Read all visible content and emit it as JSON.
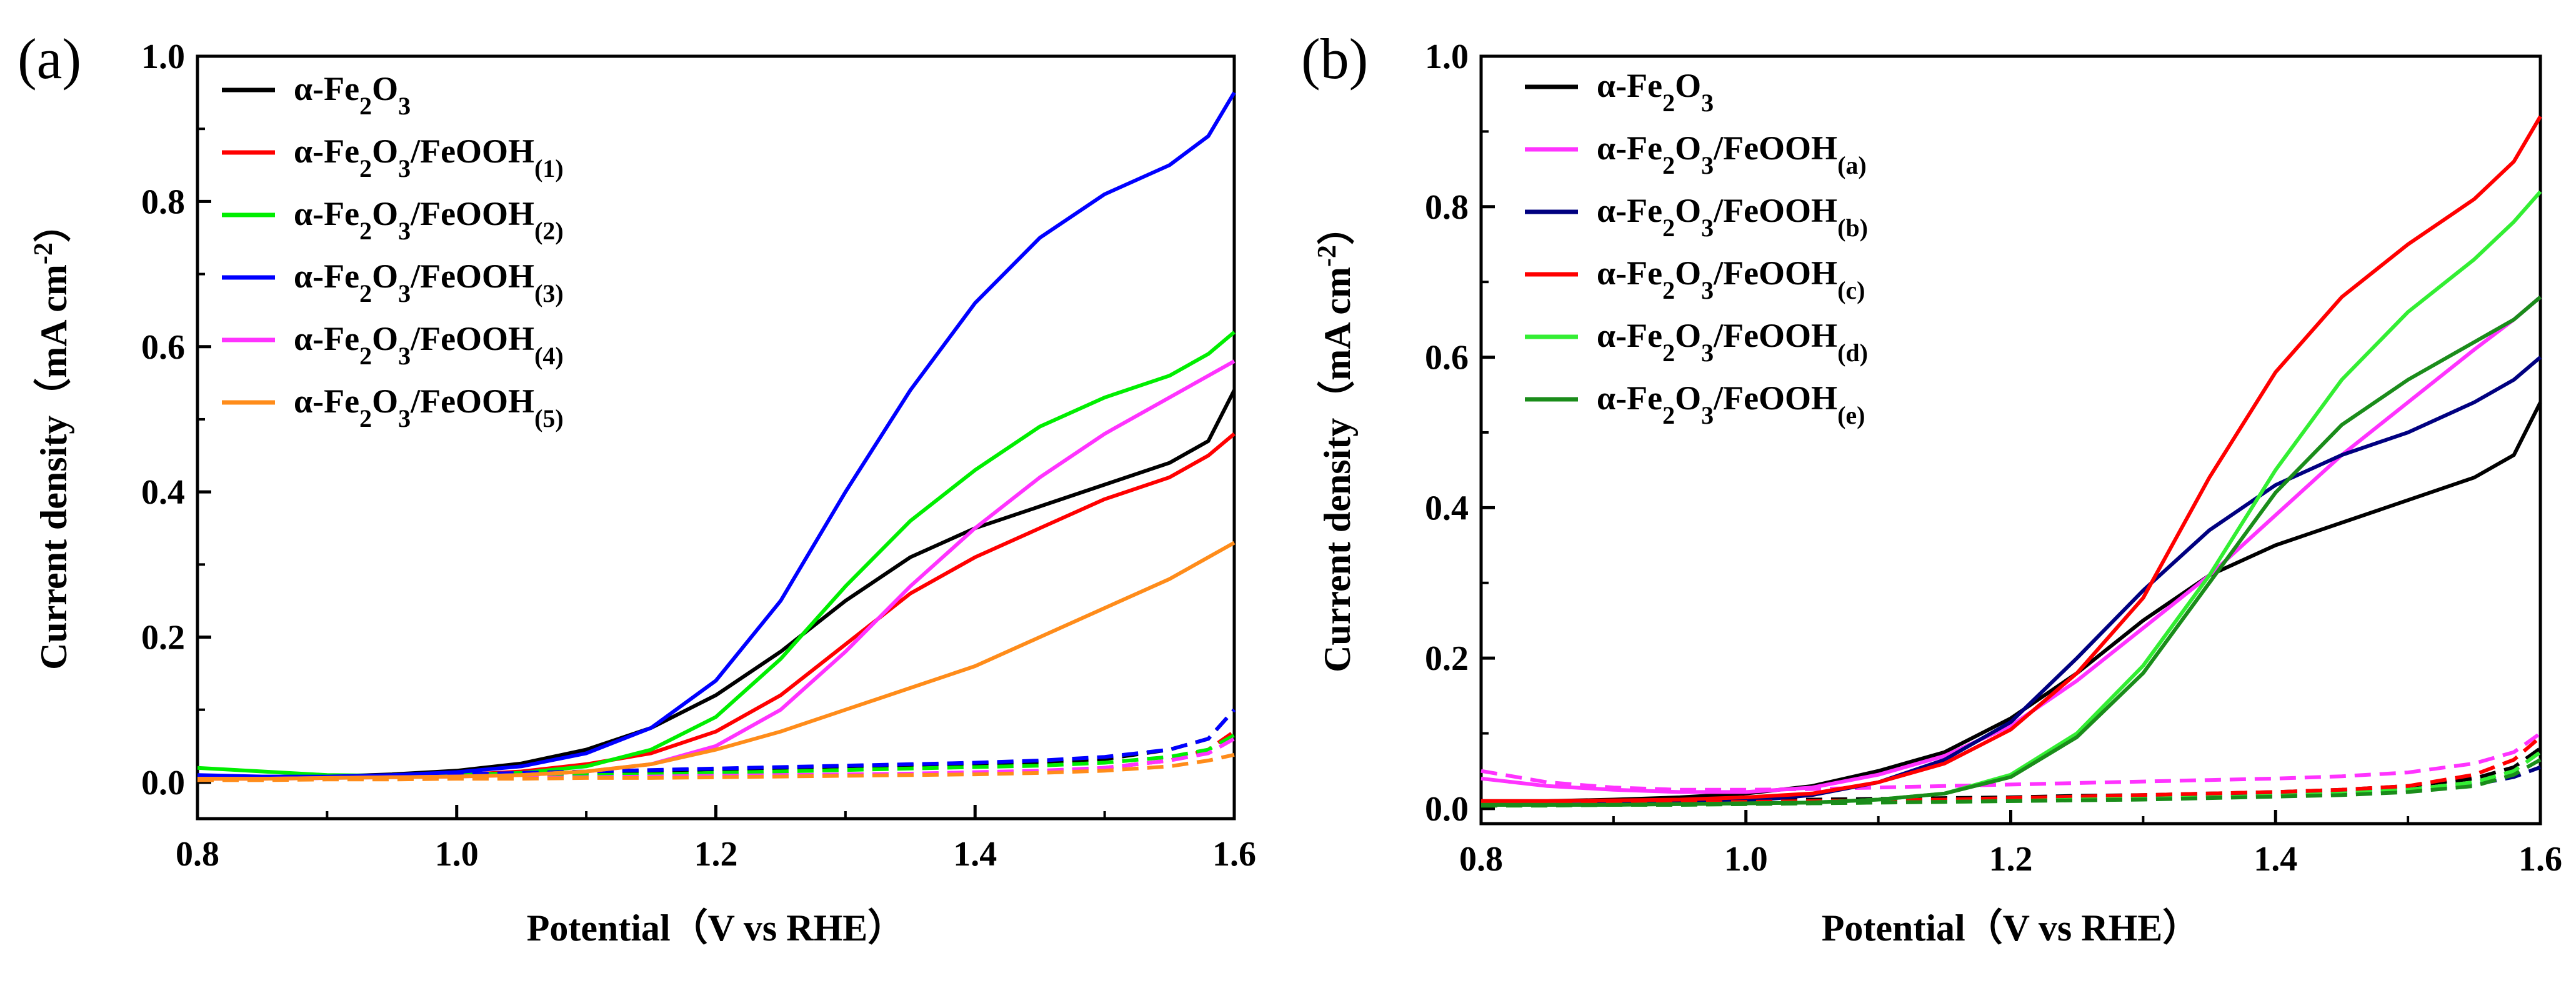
{
  "chart_data": [
    {
      "panel_label": "(a)",
      "type": "line",
      "xlabel": "Potential（V  vs RHE）",
      "ylabel": "Current density（mA cm",
      "ylabel_sup": "-2",
      "ylabel_tail": "）",
      "xlim": [
        0.8,
        1.6
      ],
      "ylim": [
        -0.05,
        1.0
      ],
      "xticks": [
        "0.8",
        "1.0",
        "1.2",
        "1.4",
        "1.6"
      ],
      "yticks": [
        "0.0",
        "0.2",
        "0.4",
        "0.6",
        "0.8",
        "1.0"
      ],
      "grid": false,
      "legend_position": "top-left",
      "x": [
        0.8,
        0.85,
        0.9,
        0.95,
        1.0,
        1.05,
        1.1,
        1.15,
        1.2,
        1.25,
        1.3,
        1.35,
        1.4,
        1.45,
        1.5,
        1.55,
        1.58,
        1.6
      ],
      "series": [
        {
          "name": "α-Fe2O3",
          "label_main": "α-Fe",
          "label_sub1": "2",
          "label_mid": "O",
          "label_sub2": "3",
          "label_tail": "",
          "label_sub3": "",
          "color": "#000000",
          "values": [
            0.005,
            0.006,
            0.008,
            0.011,
            0.016,
            0.026,
            0.045,
            0.075,
            0.12,
            0.18,
            0.25,
            0.31,
            0.35,
            0.38,
            0.41,
            0.44,
            0.47,
            0.54
          ],
          "dark": [
            0.005,
            0.006,
            0.007,
            0.009,
            0.01,
            0.012,
            0.014,
            0.016,
            0.018,
            0.02,
            0.022,
            0.024,
            0.026,
            0.028,
            0.032,
            0.045,
            0.06,
            0.1
          ]
        },
        {
          "name": "α-Fe2O3/FeOOH(1)",
          "label_main": "α-Fe",
          "label_sub1": "2",
          "label_mid": "O",
          "label_sub2": "3",
          "label_tail": "/FeOOH",
          "label_sub3": "(1)",
          "color": "#ff0000",
          "values": [
            0.005,
            0.005,
            0.006,
            0.008,
            0.01,
            0.015,
            0.025,
            0.04,
            0.07,
            0.12,
            0.19,
            0.26,
            0.31,
            0.35,
            0.39,
            0.42,
            0.45,
            0.48
          ],
          "dark": [
            0.004,
            0.004,
            0.005,
            0.005,
            0.006,
            0.006,
            0.007,
            0.007,
            0.008,
            0.009,
            0.01,
            0.011,
            0.013,
            0.015,
            0.02,
            0.03,
            0.045,
            0.07
          ]
        },
        {
          "name": "α-Fe2O3/FeOOH(2)",
          "label_main": "α-Fe",
          "label_sub1": "2",
          "label_mid": "O",
          "label_sub2": "3",
          "label_tail": "/FeOOH",
          "label_sub3": "(2)",
          "color": "#00ee00",
          "values": [
            0.02,
            0.015,
            0.01,
            0.009,
            0.01,
            0.013,
            0.022,
            0.045,
            0.09,
            0.17,
            0.27,
            0.36,
            0.43,
            0.49,
            0.53,
            0.56,
            0.59,
            0.62
          ],
          "dark": [
            0.005,
            0.005,
            0.006,
            0.007,
            0.008,
            0.009,
            0.01,
            0.011,
            0.013,
            0.015,
            0.017,
            0.019,
            0.021,
            0.023,
            0.027,
            0.035,
            0.045,
            0.065
          ]
        },
        {
          "name": "α-Fe2O3/FeOOH(3)",
          "label_main": "α-Fe",
          "label_sub1": "2",
          "label_mid": "O",
          "label_sub2": "3",
          "label_tail": "/FeOOH",
          "label_sub3": "(3)",
          "color": "#0000ff",
          "values": [
            0.01,
            0.008,
            0.008,
            0.01,
            0.014,
            0.022,
            0.04,
            0.075,
            0.14,
            0.25,
            0.4,
            0.54,
            0.66,
            0.75,
            0.81,
            0.85,
            0.89,
            0.95
          ],
          "dark": [
            0.005,
            0.006,
            0.007,
            0.009,
            0.011,
            0.013,
            0.015,
            0.017,
            0.019,
            0.021,
            0.023,
            0.025,
            0.027,
            0.03,
            0.035,
            0.045,
            0.06,
            0.1
          ]
        },
        {
          "name": "α-Fe2O3/FeOOH(4)",
          "label_main": "α-Fe",
          "label_sub1": "2",
          "label_mid": "O",
          "label_sub2": "3",
          "label_tail": "/FeOOH",
          "label_sub3": "(4)",
          "color": "#ff33ff",
          "values": [
            0.005,
            0.005,
            0.006,
            0.007,
            0.008,
            0.01,
            0.015,
            0.025,
            0.05,
            0.1,
            0.18,
            0.27,
            0.35,
            0.42,
            0.48,
            0.53,
            0.56,
            0.58
          ],
          "dark": [
            0.004,
            0.004,
            0.005,
            0.005,
            0.006,
            0.006,
            0.007,
            0.008,
            0.009,
            0.01,
            0.011,
            0.012,
            0.014,
            0.016,
            0.02,
            0.03,
            0.04,
            0.06
          ]
        },
        {
          "name": "α-Fe2O3/FeOOH(5)",
          "label_main": "α-Fe",
          "label_sub1": "2",
          "label_mid": "O",
          "label_sub2": "3",
          "label_tail": "/FeOOH",
          "label_sub3": "(5)",
          "color": "#ff8c1a",
          "values": [
            0.005,
            0.005,
            0.006,
            0.007,
            0.008,
            0.01,
            0.015,
            0.025,
            0.045,
            0.07,
            0.1,
            0.13,
            0.16,
            0.2,
            0.24,
            0.28,
            0.31,
            0.33
          ],
          "dark": [
            0.003,
            0.003,
            0.004,
            0.004,
            0.005,
            0.005,
            0.006,
            0.006,
            0.007,
            0.008,
            0.009,
            0.01,
            0.011,
            0.013,
            0.016,
            0.022,
            0.03,
            0.038
          ]
        }
      ]
    },
    {
      "panel_label": "(b)",
      "type": "line",
      "xlabel": "Potential（V  vs RHE）",
      "ylabel": "Current density（mA cm",
      "ylabel_sup": "-2",
      "ylabel_tail": "）",
      "xlim": [
        0.8,
        1.6
      ],
      "ylim": [
        -0.02,
        1.0
      ],
      "xticks": [
        "0.8",
        "1.0",
        "1.2",
        "1.4",
        "1.6"
      ],
      "yticks": [
        "0.0",
        "0.2",
        "0.4",
        "0.6",
        "0.8",
        "1.0"
      ],
      "grid": false,
      "legend_position": "top-left",
      "x": [
        0.8,
        0.85,
        0.9,
        0.95,
        1.0,
        1.05,
        1.1,
        1.15,
        1.2,
        1.25,
        1.3,
        1.35,
        1.4,
        1.45,
        1.5,
        1.55,
        1.58,
        1.6
      ],
      "series": [
        {
          "name": "α-Fe2O3",
          "label_main": "α-Fe",
          "label_sub1": "2",
          "label_mid": "O",
          "label_sub2": "3",
          "label_tail": "",
          "label_sub3": "",
          "color": "#000000",
          "values": [
            0.01,
            0.01,
            0.012,
            0.015,
            0.02,
            0.03,
            0.05,
            0.075,
            0.12,
            0.18,
            0.25,
            0.31,
            0.35,
            0.38,
            0.41,
            0.44,
            0.47,
            0.54
          ],
          "dark": [
            0.008,
            0.008,
            0.009,
            0.01,
            0.011,
            0.012,
            0.013,
            0.014,
            0.015,
            0.017,
            0.018,
            0.02,
            0.022,
            0.025,
            0.03,
            0.04,
            0.055,
            0.08
          ]
        },
        {
          "name": "α-Fe2O3/FeOOH(a)",
          "label_main": "α-Fe",
          "label_sub1": "2",
          "label_mid": "O",
          "label_sub2": "3",
          "label_tail": "/FeOOH",
          "label_sub3": "(a)",
          "color": "#ff33ff",
          "values": [
            0.04,
            0.03,
            0.025,
            0.022,
            0.022,
            0.028,
            0.045,
            0.07,
            0.11,
            0.17,
            0.24,
            0.31,
            0.39,
            0.47,
            0.54,
            0.61,
            0.65,
            0.68
          ],
          "dark": [
            0.05,
            0.035,
            0.028,
            0.025,
            0.025,
            0.026,
            0.028,
            0.03,
            0.032,
            0.034,
            0.036,
            0.038,
            0.04,
            0.043,
            0.048,
            0.06,
            0.075,
            0.1
          ]
        },
        {
          "name": "α-Fe2O3/FeOOH(b)",
          "label_main": "α-Fe",
          "label_sub1": "2",
          "label_mid": "O",
          "label_sub2": "3",
          "label_tail": "/FeOOH",
          "label_sub3": "(b)",
          "color": "#000080",
          "values": [
            0.005,
            0.005,
            0.006,
            0.008,
            0.01,
            0.018,
            0.035,
            0.065,
            0.115,
            0.2,
            0.29,
            0.37,
            0.43,
            0.47,
            0.5,
            0.54,
            0.57,
            0.6
          ],
          "dark": [
            0.005,
            0.005,
            0.006,
            0.007,
            0.008,
            0.009,
            0.01,
            0.011,
            0.012,
            0.014,
            0.015,
            0.017,
            0.019,
            0.021,
            0.025,
            0.032,
            0.042,
            0.055
          ]
        },
        {
          "name": "α-Fe2O3/FeOOH(c)",
          "label_main": "α-Fe",
          "label_sub1": "2",
          "label_mid": "O",
          "label_sub2": "3",
          "label_tail": "/FeOOH",
          "label_sub3": "(c)",
          "color": "#ff0000",
          "values": [
            0.01,
            0.01,
            0.011,
            0.012,
            0.015,
            0.02,
            0.035,
            0.06,
            0.105,
            0.18,
            0.28,
            0.44,
            0.58,
            0.68,
            0.75,
            0.81,
            0.86,
            0.92
          ],
          "dark": [
            0.006,
            0.006,
            0.007,
            0.008,
            0.009,
            0.01,
            0.011,
            0.012,
            0.014,
            0.016,
            0.018,
            0.02,
            0.022,
            0.025,
            0.03,
            0.045,
            0.065,
            0.095
          ]
        },
        {
          "name": "α-Fe2O3/FeOOH(d)",
          "label_main": "α-Fe",
          "label_sub1": "2",
          "label_mid": "O",
          "label_sub2": "3",
          "label_tail": "/FeOOH",
          "label_sub3": "(d)",
          "color": "#33ee33",
          "values": [
            0.005,
            0.005,
            0.005,
            0.006,
            0.007,
            0.008,
            0.012,
            0.02,
            0.045,
            0.1,
            0.19,
            0.31,
            0.45,
            0.57,
            0.66,
            0.73,
            0.78,
            0.82
          ],
          "dark": [
            0.004,
            0.004,
            0.005,
            0.005,
            0.006,
            0.007,
            0.008,
            0.009,
            0.01,
            0.012,
            0.013,
            0.015,
            0.017,
            0.02,
            0.025,
            0.035,
            0.05,
            0.075
          ]
        },
        {
          "name": "α-Fe2O3/FeOOH(e)",
          "label_main": "α-Fe",
          "label_sub1": "2",
          "label_mid": "O",
          "label_sub2": "3",
          "label_tail": "/FeOOH",
          "label_sub3": "(e)",
          "color": "#1a8c1a",
          "values": [
            0.005,
            0.005,
            0.005,
            0.006,
            0.007,
            0.008,
            0.012,
            0.02,
            0.042,
            0.095,
            0.18,
            0.3,
            0.42,
            0.51,
            0.57,
            0.62,
            0.65,
            0.68
          ],
          "dark": [
            0.004,
            0.004,
            0.005,
            0.005,
            0.006,
            0.007,
            0.008,
            0.009,
            0.01,
            0.011,
            0.012,
            0.014,
            0.016,
            0.018,
            0.022,
            0.03,
            0.045,
            0.065
          ]
        }
      ]
    }
  ]
}
